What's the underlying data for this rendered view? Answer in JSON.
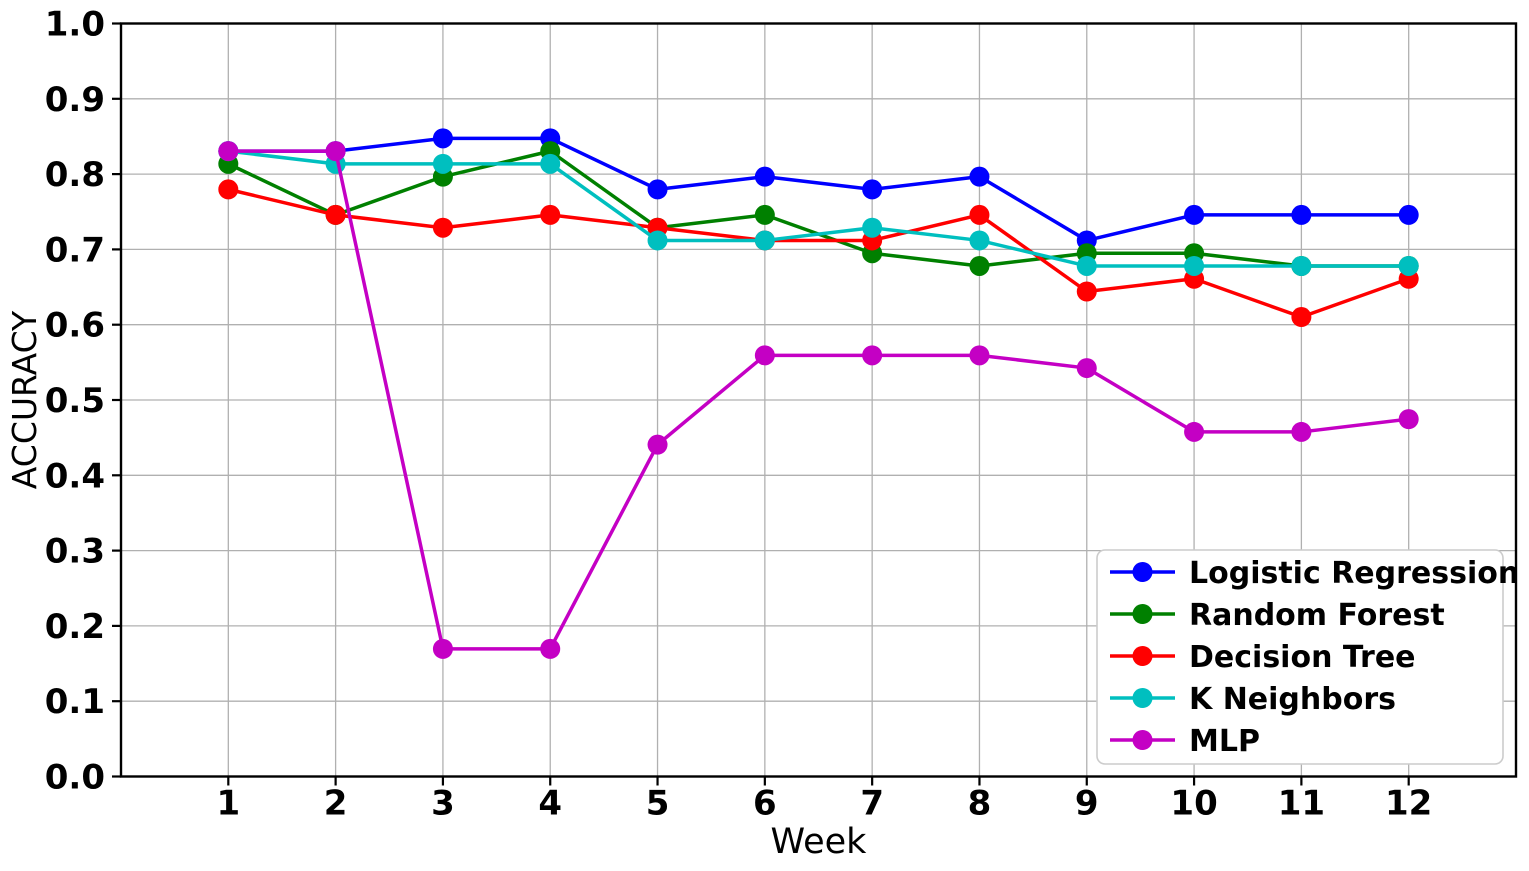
{
  "chart_data": {
    "type": "line",
    "title": "",
    "xlabel": "Week",
    "ylabel": "ACCURACY",
    "x": [
      1,
      2,
      3,
      4,
      5,
      6,
      7,
      8,
      9,
      10,
      11,
      12
    ],
    "x_tick_labels": [
      "1",
      "2",
      "3",
      "4",
      "5",
      "6",
      "7",
      "8",
      "9",
      "10",
      "11",
      "12"
    ],
    "y_ticks": [
      0.0,
      0.1,
      0.2,
      0.3,
      0.4,
      0.5,
      0.6,
      0.7,
      0.8,
      0.9,
      1.0
    ],
    "y_tick_labels": [
      "0.0",
      "0.1",
      "0.2",
      "0.3",
      "0.4",
      "0.5",
      "0.6",
      "0.7",
      "0.8",
      "0.9",
      "1.0"
    ],
    "xlim": [
      0,
      13
    ],
    "ylim": [
      0.0,
      1.0
    ],
    "grid": true,
    "legend_position": "lower right",
    "series": [
      {
        "name": "Logistic Regression",
        "color": "#0000FF",
        "values": [
          0.8305,
          0.8305,
          0.8475,
          0.8475,
          0.7797,
          0.7966,
          0.7797,
          0.7966,
          0.7119,
          0.7458,
          0.7458,
          0.7458
        ]
      },
      {
        "name": "Random Forest",
        "color": "#008000",
        "values": [
          0.8136,
          0.7458,
          0.7966,
          0.8305,
          0.7288,
          0.7458,
          0.6949,
          0.678,
          0.6949,
          0.6949,
          0.678,
          0.678
        ]
      },
      {
        "name": "Decision Tree",
        "color": "#FF0000",
        "values": [
          0.7797,
          0.7458,
          0.7288,
          0.7458,
          0.7288,
          0.7119,
          0.7119,
          0.7458,
          0.6441,
          0.661,
          0.6102,
          0.661
        ]
      },
      {
        "name": "K Neighbors",
        "color": "#00BFBF",
        "values": [
          0.8305,
          0.8136,
          0.8136,
          0.8136,
          0.7119,
          0.7119,
          0.7288,
          0.7119,
          0.678,
          0.678,
          0.678,
          0.678
        ]
      },
      {
        "name": "MLP",
        "color": "#C400C4",
        "values": [
          0.8305,
          0.8305,
          0.1695,
          0.1695,
          0.4407,
          0.5593,
          0.5593,
          0.5593,
          0.5424,
          0.4576,
          0.4576,
          0.4746
        ]
      }
    ],
    "style": {
      "background": "#ffffff",
      "gridline_color": "#b0b0b0",
      "spine_color": "#000000",
      "tick_label_color": "#000000",
      "legend_border_color": "#cccccc",
      "legend_background": "#ffffff"
    }
  }
}
